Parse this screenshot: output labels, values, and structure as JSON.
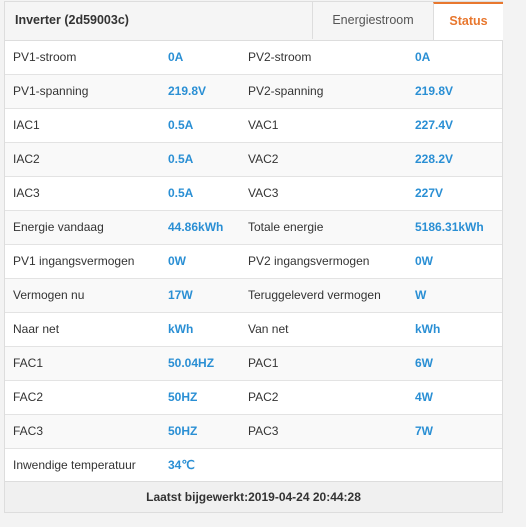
{
  "header": {
    "title": "Inverter (2d59003c)",
    "tabs": [
      {
        "label": "Energiestroom",
        "active": false
      },
      {
        "label": "Status",
        "active": true
      }
    ]
  },
  "colors": {
    "accent": "#e8772e",
    "value": "#2a8fd4"
  },
  "rows": [
    {
      "l1": "PV1-stroom",
      "v1": "0A",
      "l2": "PV2-stroom",
      "v2": "0A"
    },
    {
      "l1": "PV1-spanning",
      "v1": "219.8V",
      "l2": "PV2-spanning",
      "v2": "219.8V"
    },
    {
      "l1": "IAC1",
      "v1": "0.5A",
      "l2": "VAC1",
      "v2": "227.4V"
    },
    {
      "l1": "IAC2",
      "v1": "0.5A",
      "l2": "VAC2",
      "v2": "228.2V"
    },
    {
      "l1": "IAC3",
      "v1": "0.5A",
      "l2": "VAC3",
      "v2": "227V"
    },
    {
      "l1": "Energie vandaag",
      "v1": "44.86kWh",
      "l2": "Totale energie",
      "v2": "5186.31kWh"
    },
    {
      "l1": "PV1 ingangsvermogen",
      "v1": "0W",
      "l2": "PV2 ingangsvermogen",
      "v2": "0W"
    },
    {
      "l1": "Vermogen nu",
      "v1": "17W",
      "l2": "Teruggeleverd vermogen",
      "v2": "W"
    },
    {
      "l1": "Naar net",
      "v1": "kWh",
      "l2": "Van net",
      "v2": "kWh"
    },
    {
      "l1": "FAC1",
      "v1": "50.04HZ",
      "l2": "PAC1",
      "v2": "6W"
    },
    {
      "l1": "FAC2",
      "v1": "50HZ",
      "l2": "PAC2",
      "v2": "4W"
    },
    {
      "l1": "FAC3",
      "v1": "50HZ",
      "l2": "PAC3",
      "v2": "7W"
    },
    {
      "l1": "Inwendige temperatuur",
      "v1": "34℃",
      "l2": "",
      "v2": ""
    }
  ],
  "footer": {
    "last_updated": "Laatst bijgewerkt:2019-04-24 20:44:28"
  }
}
